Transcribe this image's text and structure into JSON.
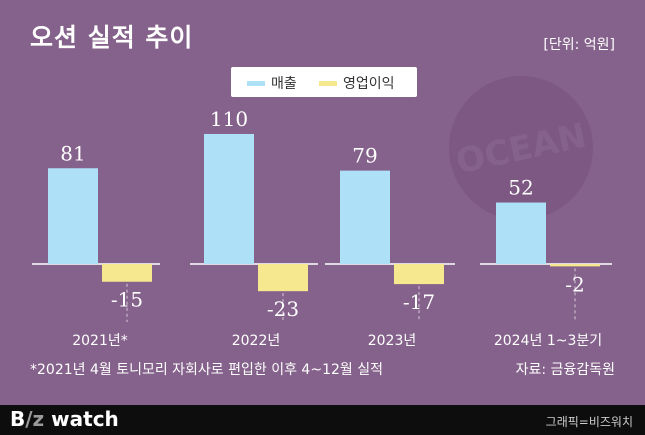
{
  "title": "오션 실적 추이",
  "unit_label": "[단위: 억원]",
  "legend": [
    {
      "label": "매출",
      "color": "#aee0f8"
    },
    {
      "label": "영업이익",
      "color": "#f6e88f"
    }
  ],
  "chart_data": {
    "type": "bar",
    "categories": [
      "2021년*",
      "2022년",
      "2023년",
      "2024년 1~3분기"
    ],
    "series": [
      {
        "name": "매출",
        "values": [
          81,
          110,
          79,
          52
        ],
        "color": "#aee0f8"
      },
      {
        "name": "영업이익",
        "values": [
          -15,
          -23,
          -17,
          -2
        ],
        "color": "#f6e88f"
      }
    ],
    "grid": false,
    "legend_position": "top-center"
  },
  "watermark_text": "OCEAN",
  "footnote": "*2021년 4월 토니모리 자회사로 편입한 이후 4~12월 실적",
  "source": "자료: 금융감독원",
  "footer": {
    "brand_prefix": "B",
    "brand_z": "/z",
    "brand_suffix": " watch",
    "credit": "그래픽=비즈워치"
  }
}
